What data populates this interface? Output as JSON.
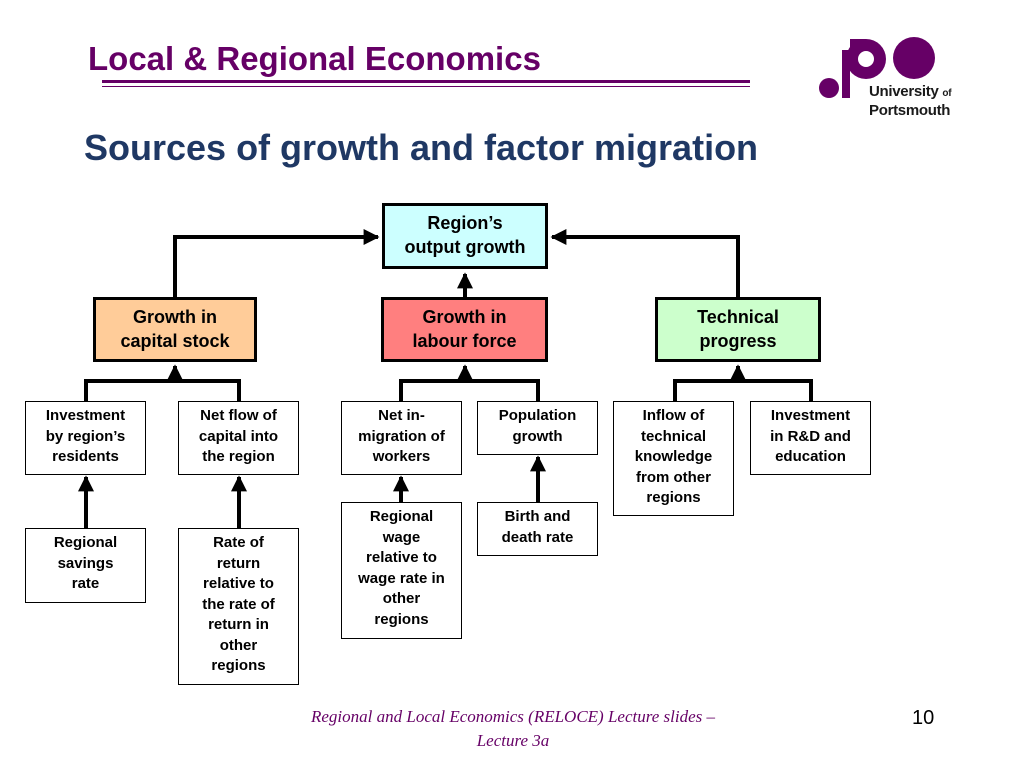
{
  "header": {
    "title": "Local & Regional Economics",
    "logo_line1": "University",
    "logo_of": "of",
    "logo_line2": "Portsmouth",
    "logo_color": "#660066"
  },
  "slide": {
    "title": "Sources of growth and factor migration"
  },
  "diagram": {
    "top": {
      "label": "Region’s\noutput growth",
      "fill": "#ccffff"
    },
    "sources": [
      {
        "label": "Growth in\ncapital stock",
        "fill": "#ffcc99"
      },
      {
        "label": "Growth in\nlabour force",
        "fill": "#ff7f7f"
      },
      {
        "label": "Technical\nprogress",
        "fill": "#ccffcc"
      }
    ],
    "level3": [
      {
        "label": "Investment\nby region’s\nresidents"
      },
      {
        "label": "Net flow of\ncapital into\nthe region"
      },
      {
        "label": "Net in-\nmigration of\nworkers"
      },
      {
        "label": "Population\ngrowth"
      },
      {
        "label": "Inflow of\ntechnical\nknowledge\nfrom other\nregions"
      },
      {
        "label": "Investment\nin R&D and\neducation"
      }
    ],
    "level4": [
      {
        "label": "Regional\nsavings\nrate"
      },
      {
        "label": "Rate of\nreturn\nrelative to\nthe rate of\nreturn in\nother\nregions"
      },
      {
        "label": "Regional\nwage\nrelative to\nwage rate in\nother\nregions"
      },
      {
        "label": "Birth and\ndeath rate"
      }
    ]
  },
  "footer": {
    "text": "Regional and Local Economics (RELOCE) Lecture slides – Lecture 3a",
    "page_number": "10"
  }
}
